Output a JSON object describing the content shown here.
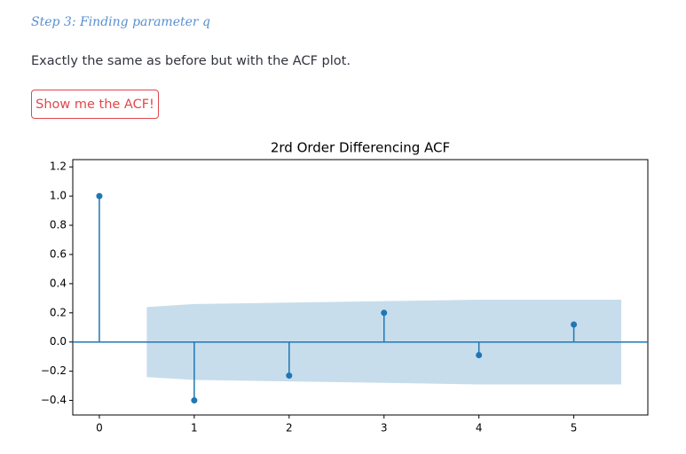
{
  "header": {
    "step": "Step 3: Finding parameter q",
    "text": "Exactly the same as before but with the ACF plot.",
    "button": "Show me the ACF!"
  },
  "chart_data": {
    "type": "stem",
    "title": "2rd Order Differencing ACF",
    "x": [
      0,
      1,
      2,
      3,
      4,
      5
    ],
    "values": [
      1.0,
      -0.4,
      -0.23,
      0.2,
      -0.09,
      0.12
    ],
    "color": "#1f77b4",
    "confidence": {
      "x": [
        0.5,
        1,
        2,
        3,
        4,
        5,
        5.5
      ],
      "upper": [
        0.24,
        0.26,
        0.27,
        0.28,
        0.29,
        0.29,
        0.29
      ],
      "lower": [
        -0.24,
        -0.26,
        -0.27,
        -0.28,
        -0.29,
        -0.29,
        -0.29
      ],
      "color": "#1f77b4"
    },
    "xlim": [
      -0.28,
      5.78
    ],
    "ylim": [
      -0.5,
      1.25
    ],
    "xticks": [
      0,
      1,
      2,
      3,
      4,
      5
    ],
    "yticks": [
      {
        "value": -0.4,
        "label": "−0.4"
      },
      {
        "value": -0.2,
        "label": "−0.2"
      },
      {
        "value": 0,
        "label": "0.0"
      },
      {
        "value": 0.2,
        "label": "0.2"
      },
      {
        "value": 0.4,
        "label": "0.4"
      },
      {
        "value": 0.6,
        "label": "0.6"
      },
      {
        "value": 0.8,
        "label": "0.8"
      },
      {
        "value": 1.0,
        "label": "1.0"
      },
      {
        "value": 1.2,
        "label": "1.2"
      }
    ]
  }
}
